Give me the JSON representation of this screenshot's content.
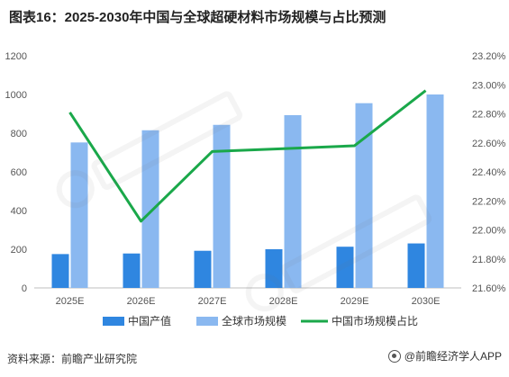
{
  "title": "图表16：2025-2030年中国与全球超硬材料市场规模与占比预测",
  "source_note": "资料来源：前瞻产业研究院",
  "publisher": "@前瞻经济学人APP",
  "colors": {
    "china_bar": "#2f86e0",
    "global_bar": "#8ab8f0",
    "share_line": "#1aa84a",
    "axis": "#bfbfbf",
    "text": "#555555"
  },
  "chart_data": {
    "type": "bar",
    "title": "",
    "xlabel": "",
    "ylabel": "",
    "categories": [
      "2025E",
      "2026E",
      "2027E",
      "2028E",
      "2029E",
      "2030E"
    ],
    "series": [
      {
        "name": "中国产值",
        "type": "bar",
        "axis": "left",
        "values": [
          175,
          178,
          192,
          200,
          213,
          230
        ]
      },
      {
        "name": "全球市场规模",
        "type": "bar",
        "axis": "left",
        "values": [
          752,
          815,
          843,
          893,
          955,
          1000
        ]
      },
      {
        "name": "中国市场规模占比",
        "type": "line",
        "axis": "right",
        "values": [
          22.81,
          22.06,
          22.54,
          22.56,
          22.58,
          22.96
        ]
      }
    ],
    "ylim_left": [
      0,
      1200
    ],
    "yticks_left": [
      0,
      200,
      400,
      600,
      800,
      1000,
      1200
    ],
    "ytick_labels_left": [
      "0",
      "200",
      "400",
      "600",
      "800",
      "1000",
      "1200"
    ],
    "ylim_right": [
      21.6,
      23.2
    ],
    "yticks_right": [
      21.6,
      21.8,
      22.0,
      22.2,
      22.4,
      22.6,
      22.8,
      23.0,
      23.2
    ],
    "ytick_labels_right": [
      "21.60%",
      "21.80%",
      "22.00%",
      "22.20%",
      "22.40%",
      "22.60%",
      "22.80%",
      "23.00%",
      "23.20%"
    ],
    "grid": false,
    "legend_position": "bottom"
  }
}
